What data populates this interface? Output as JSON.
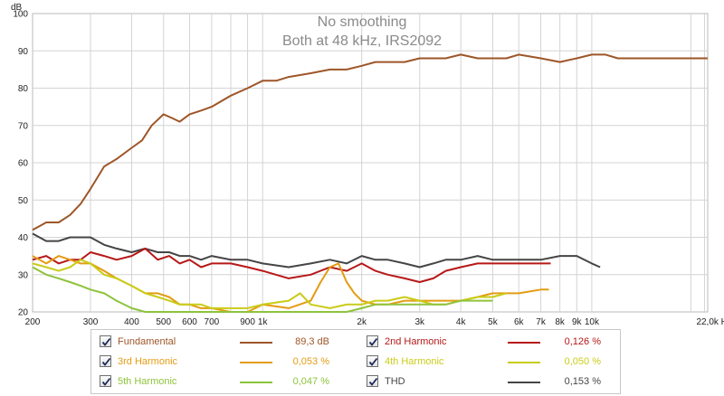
{
  "chart_data": {
    "type": "line",
    "title": "No smoothing",
    "subtitle": "Both at 48 kHz, IRS2092",
    "ylabel": "dB",
    "xscale": "log",
    "xlim": [
      200,
      22500
    ],
    "ylim": [
      20,
      100
    ],
    "grid": true,
    "x_ticks": [
      {
        "v": 200,
        "t": "200"
      },
      {
        "v": 300,
        "t": "300"
      },
      {
        "v": 400,
        "t": "400"
      },
      {
        "v": 500,
        "t": "500"
      },
      {
        "v": 600,
        "t": "600"
      },
      {
        "v": 700,
        "t": "700"
      },
      {
        "v": 900,
        "t": "900"
      },
      {
        "v": 1000,
        "t": "1k"
      },
      {
        "v": 2000,
        "t": "2k"
      },
      {
        "v": 3000,
        "t": "3k"
      },
      {
        "v": 4000,
        "t": "4k"
      },
      {
        "v": 5000,
        "t": "5k"
      },
      {
        "v": 6000,
        "t": "6k"
      },
      {
        "v": 7000,
        "t": "7k"
      },
      {
        "v": 8000,
        "t": "8k"
      },
      {
        "v": 9000,
        "t": "9k"
      },
      {
        "v": 10000,
        "t": "10k"
      },
      {
        "v": 22000,
        "t": "22,0k Hz"
      }
    ],
    "x_minor": [
      800,
      20000
    ],
    "y_ticks": [
      {
        "v": 20,
        "t": "20"
      },
      {
        "v": 30,
        "t": "30"
      },
      {
        "v": 40,
        "t": "40"
      },
      {
        "v": 50,
        "t": "50"
      },
      {
        "v": 60,
        "t": "60"
      },
      {
        "v": 70,
        "t": "70"
      },
      {
        "v": 80,
        "t": "80"
      },
      {
        "v": 90,
        "t": "90"
      },
      {
        "v": 100,
        "t": "100"
      }
    ],
    "series": [
      {
        "name": "THD",
        "color": "#454545",
        "x": [
          200,
          220,
          240,
          260,
          280,
          300,
          330,
          360,
          400,
          440,
          480,
          520,
          560,
          600,
          650,
          700,
          800,
          900,
          1000,
          1200,
          1400,
          1600,
          1800,
          2000,
          2200,
          2400,
          2700,
          3000,
          3300,
          3600,
          4000,
          4500,
          5000,
          5500,
          6000,
          7000,
          8000,
          9000,
          10000,
          10600
        ],
        "y": [
          41,
          39,
          39,
          40,
          40,
          40,
          38,
          37,
          36,
          37,
          36,
          36,
          35,
          35,
          34,
          35,
          34,
          34,
          33,
          32,
          33,
          34,
          33,
          35,
          34,
          34,
          33,
          32,
          33,
          34,
          34,
          35,
          34,
          34,
          34,
          34,
          35,
          35,
          33,
          32
        ]
      },
      {
        "name": "2nd Harmonic",
        "color": "#b71818",
        "x": [
          200,
          220,
          240,
          260,
          280,
          300,
          330,
          360,
          400,
          440,
          480,
          520,
          560,
          600,
          650,
          700,
          800,
          900,
          1000,
          1200,
          1400,
          1600,
          1800,
          2000,
          2200,
          2400,
          2700,
          3000,
          3300,
          3600,
          4000,
          4500,
          5000,
          5500,
          6000,
          7000,
          7500
        ],
        "y": [
          34,
          35,
          33,
          34,
          34,
          36,
          35,
          34,
          35,
          37,
          34,
          35,
          33,
          34,
          32,
          33,
          33,
          32,
          31,
          29,
          30,
          32,
          31,
          33,
          31,
          30,
          29,
          28,
          29,
          31,
          32,
          33,
          33,
          33,
          33,
          33,
          33
        ]
      },
      {
        "name": "3rd Harmonic",
        "color": "#e39c12",
        "x": [
          200,
          220,
          240,
          260,
          280,
          300,
          330,
          360,
          400,
          440,
          480,
          520,
          560,
          600,
          650,
          700,
          800,
          900,
          1000,
          1200,
          1400,
          1500,
          1600,
          1700,
          1800,
          1900,
          2000,
          2200,
          2400,
          2700,
          3000,
          3300,
          3600,
          4000,
          4500,
          5000,
          5500,
          6000,
          7000,
          7400
        ],
        "y": [
          35,
          33,
          35,
          34,
          33,
          33,
          31,
          29,
          27,
          25,
          25,
          24,
          22,
          22,
          21,
          21,
          20,
          20,
          22,
          21,
          23,
          28,
          32,
          33,
          28,
          25,
          23,
          22,
          22,
          23,
          23,
          23,
          23,
          23,
          24,
          25,
          25,
          25,
          26,
          26
        ]
      },
      {
        "name": "4th Harmonic",
        "color": "#c9cc18",
        "x": [
          200,
          220,
          240,
          260,
          280,
          300,
          330,
          360,
          400,
          440,
          480,
          520,
          560,
          600,
          650,
          700,
          800,
          900,
          1000,
          1200,
          1300,
          1400,
          1600,
          1800,
          2000,
          2200,
          2400,
          2700,
          3000,
          3300,
          3600,
          4000,
          4500,
          5000,
          5500
        ],
        "y": [
          33,
          32,
          31,
          32,
          34,
          33,
          30,
          29,
          27,
          25,
          24,
          23,
          22,
          22,
          22,
          21,
          21,
          21,
          22,
          23,
          25,
          22,
          21,
          22,
          22,
          23,
          23,
          24,
          23,
          22,
          22,
          23,
          24,
          24,
          25
        ]
      },
      {
        "name": "5th Harmonic",
        "color": "#8dc33c",
        "x": [
          200,
          220,
          240,
          260,
          280,
          300,
          330,
          360,
          400,
          440,
          480,
          520,
          560,
          600,
          650,
          700,
          800,
          900,
          1000,
          1200,
          1400,
          1600,
          1800,
          2000,
          2200,
          2400,
          2700,
          3000,
          3300,
          3600,
          4000,
          4500,
          5000
        ],
        "y": [
          32,
          30,
          29,
          28,
          27,
          26,
          25,
          23,
          21,
          20,
          20,
          20,
          20,
          20,
          20,
          20,
          20,
          20,
          20,
          20,
          20,
          20,
          20,
          21,
          22,
          22,
          22,
          22,
          22,
          22,
          23,
          23,
          23
        ]
      },
      {
        "name": "Fundamental",
        "color": "#9e5628",
        "x": [
          200,
          210,
          220,
          240,
          260,
          280,
          300,
          330,
          360,
          400,
          430,
          460,
          500,
          530,
          560,
          600,
          650,
          700,
          800,
          900,
          1000,
          1100,
          1200,
          1400,
          1600,
          1800,
          2000,
          2200,
          2400,
          2700,
          3000,
          3300,
          3600,
          4000,
          4500,
          5000,
          5500,
          6000,
          7000,
          8000,
          9000,
          10000,
          11000,
          12000,
          13000,
          15000,
          17000,
          20000,
          22500
        ],
        "y": [
          42,
          43,
          44,
          44,
          46,
          49,
          53,
          59,
          61,
          64,
          66,
          70,
          73,
          72,
          71,
          73,
          74,
          75,
          78,
          80,
          82,
          82,
          83,
          84,
          85,
          85,
          86,
          87,
          87,
          87,
          88,
          88,
          88,
          89,
          88,
          88,
          88,
          89,
          88,
          87,
          88,
          89,
          89,
          88,
          88,
          88,
          88,
          88,
          88
        ]
      }
    ]
  },
  "legend": {
    "fundamental": {
      "label": "Fundamental",
      "value": "89,3 dB",
      "color": "#9e5628"
    },
    "h2": {
      "label": "2nd Harmonic",
      "value": "0,126 %",
      "color": "#b71818"
    },
    "h3": {
      "label": "3rd Harmonic",
      "value": "0,053 %",
      "color": "#e39c12"
    },
    "h4": {
      "label": "4th Harmonic",
      "value": "0,050 %",
      "color": "#c9cc18"
    },
    "h5": {
      "label": "5th Harmonic",
      "value": "0,047 %",
      "color": "#8dc33c"
    },
    "thd": {
      "label": "THD",
      "value": "0,153 %",
      "color": "#454545"
    }
  },
  "icons": {
    "checkbox": "checkmark-icon"
  }
}
